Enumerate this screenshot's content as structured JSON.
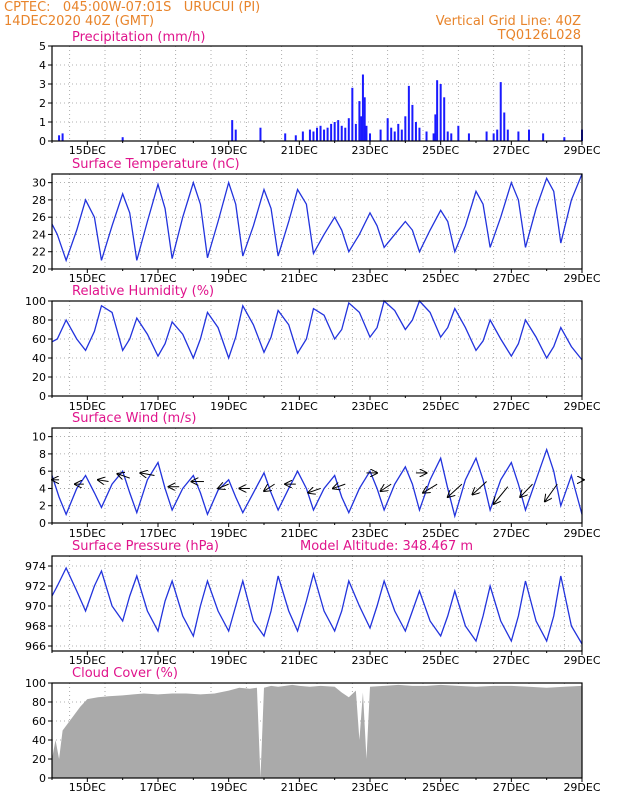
{
  "header": {
    "line1_left": "CPTEC:   045:00W-07:01S   URUCUI (PI)",
    "line2_left": "14DEC2020 40Z (GMT)",
    "line1_right": "Vertical Grid Line: 40Z",
    "line2_right": "TQ0126L028"
  },
  "x_axis": {
    "tick_labels": [
      "15DEC",
      "17DEC",
      "19DEC",
      "21DEC",
      "23DEC",
      "25DEC",
      "27DEC",
      "29DEC"
    ],
    "start_day": 14.0,
    "end_day": 29.0
  },
  "colors": {
    "line": "#2233dd",
    "bar": "#1a1aff",
    "cloud": "#aaaaaa",
    "title": "#e0148c",
    "header": "#e8842b"
  },
  "chart_data": [
    {
      "type": "bar",
      "title": "Precipitation (mm/h)",
      "ylim": [
        0,
        5
      ],
      "yticks": [
        0,
        1,
        2,
        3,
        4,
        5
      ],
      "x": [
        14.2,
        14.3,
        16.0,
        19.1,
        19.2,
        19.9,
        20.6,
        20.9,
        21.1,
        21.3,
        21.4,
        21.5,
        21.6,
        21.7,
        21.8,
        21.9,
        22.0,
        22.1,
        22.2,
        22.3,
        22.4,
        22.5,
        22.6,
        22.7,
        22.75,
        22.8,
        22.85,
        22.9,
        23.0,
        23.3,
        23.5,
        23.6,
        23.7,
        23.8,
        23.9,
        24.0,
        24.1,
        24.2,
        24.3,
        24.4,
        24.6,
        24.8,
        24.85,
        24.9,
        25.0,
        25.1,
        25.2,
        25.3,
        25.5,
        25.8,
        26.3,
        26.5,
        26.6,
        26.7,
        26.8,
        26.9,
        27.2,
        27.5,
        27.9,
        28.5,
        29.0
      ],
      "values": [
        0.3,
        0.4,
        0.2,
        1.1,
        0.6,
        0.7,
        0.4,
        0.3,
        0.5,
        0.6,
        0.5,
        0.7,
        0.8,
        0.6,
        0.7,
        0.9,
        1.0,
        1.1,
        0.8,
        0.7,
        1.2,
        2.8,
        0.9,
        2.1,
        1.3,
        3.5,
        2.3,
        0.8,
        0.4,
        0.6,
        1.2,
        0.7,
        0.5,
        0.9,
        0.6,
        1.3,
        2.9,
        1.9,
        1.0,
        0.7,
        0.5,
        0.4,
        1.4,
        3.2,
        3.0,
        2.3,
        0.5,
        0.4,
        0.8,
        0.4,
        0.5,
        0.4,
        0.6,
        3.1,
        1.5,
        0.6,
        0.5,
        0.6,
        0.4,
        0.2,
        0.6
      ]
    },
    {
      "type": "line",
      "title": "Surface Temperature (nC)",
      "ylim": [
        20,
        31
      ],
      "yticks": [
        20,
        22,
        24,
        26,
        28,
        30
      ],
      "x": [
        14.0,
        14.15,
        14.4,
        14.7,
        14.95,
        15.2,
        15.4,
        15.7,
        16.0,
        16.2,
        16.4,
        16.7,
        17.0,
        17.2,
        17.4,
        17.7,
        18.0,
        18.2,
        18.4,
        18.7,
        19.0,
        19.2,
        19.4,
        19.7,
        20.0,
        20.2,
        20.4,
        20.7,
        20.95,
        21.2,
        21.4,
        21.7,
        22.0,
        22.2,
        22.4,
        22.7,
        23.0,
        23.2,
        23.4,
        23.7,
        24.0,
        24.2,
        24.4,
        24.7,
        25.0,
        25.2,
        25.4,
        25.7,
        26.0,
        26.2,
        26.4,
        26.7,
        27.0,
        27.2,
        27.4,
        27.7,
        28.0,
        28.2,
        28.4,
        28.7,
        29.0
      ],
      "values": [
        25.2,
        24.0,
        21.0,
        24.5,
        28.0,
        26.0,
        21.0,
        25.0,
        28.7,
        26.5,
        21.0,
        25.5,
        29.8,
        27.0,
        21.2,
        26.0,
        30.0,
        27.5,
        21.3,
        25.5,
        30.0,
        27.5,
        21.5,
        25.0,
        29.2,
        27.0,
        21.5,
        25.5,
        29.2,
        27.5,
        21.8,
        24.0,
        26.0,
        24.5,
        22.0,
        24.0,
        26.5,
        25.0,
        22.5,
        24.0,
        25.5,
        24.5,
        22.0,
        24.5,
        26.8,
        25.5,
        22.0,
        25.0,
        29.0,
        27.5,
        22.5,
        26.0,
        30.0,
        28.0,
        22.5,
        27.0,
        30.5,
        29.0,
        23.0,
        28.0,
        31.0
      ]
    },
    {
      "type": "line",
      "title": "Relative Humidity (%)",
      "ylim": [
        0,
        100
      ],
      "yticks": [
        0,
        20,
        40,
        60,
        80,
        100
      ],
      "x": [
        14.0,
        14.15,
        14.4,
        14.7,
        14.95,
        15.2,
        15.4,
        15.7,
        16.0,
        16.2,
        16.4,
        16.7,
        17.0,
        17.2,
        17.4,
        17.7,
        18.0,
        18.2,
        18.4,
        18.7,
        19.0,
        19.2,
        19.4,
        19.7,
        20.0,
        20.2,
        20.4,
        20.7,
        20.95,
        21.2,
        21.4,
        21.7,
        22.0,
        22.2,
        22.4,
        22.7,
        23.0,
        23.2,
        23.4,
        23.7,
        24.0,
        24.2,
        24.4,
        24.7,
        25.0,
        25.2,
        25.4,
        25.7,
        26.0,
        26.2,
        26.4,
        26.7,
        27.0,
        27.2,
        27.4,
        27.7,
        28.0,
        28.2,
        28.4,
        28.7,
        29.0
      ],
      "values": [
        57,
        60,
        80,
        60,
        48,
        68,
        95,
        88,
        48,
        60,
        82,
        65,
        42,
        55,
        78,
        65,
        40,
        60,
        88,
        72,
        40,
        62,
        95,
        75,
        46,
        62,
        90,
        75,
        45,
        60,
        92,
        85,
        60,
        70,
        98,
        88,
        62,
        72,
        100,
        90,
        70,
        80,
        100,
        88,
        62,
        72,
        92,
        72,
        48,
        58,
        80,
        60,
        42,
        55,
        80,
        62,
        40,
        52,
        72,
        52,
        38
      ]
    },
    {
      "type": "line",
      "title": "Surface Wind (m/s)",
      "ylim": [
        0,
        11
      ],
      "yticks": [
        0,
        2,
        4,
        6,
        8,
        10
      ],
      "x": [
        14.0,
        14.2,
        14.4,
        14.7,
        14.95,
        15.2,
        15.4,
        15.7,
        16.0,
        16.2,
        16.4,
        16.7,
        17.0,
        17.2,
        17.4,
        17.7,
        18.0,
        18.2,
        18.4,
        18.7,
        19.0,
        19.2,
        19.4,
        19.7,
        20.0,
        20.2,
        20.4,
        20.7,
        20.95,
        21.2,
        21.4,
        21.7,
        22.0,
        22.2,
        22.4,
        22.7,
        23.0,
        23.2,
        23.4,
        23.7,
        24.0,
        24.2,
        24.4,
        24.7,
        25.0,
        25.2,
        25.4,
        25.7,
        26.0,
        26.2,
        26.4,
        26.7,
        27.0,
        27.2,
        27.4,
        27.7,
        28.0,
        28.2,
        28.4,
        28.7,
        29.0
      ],
      "values": [
        5.5,
        3.0,
        1.0,
        4.0,
        5.5,
        3.5,
        1.8,
        4.5,
        6.0,
        3.5,
        1.2,
        5.0,
        7.0,
        4.0,
        1.5,
        4.0,
        5.5,
        3.5,
        1.0,
        3.8,
        5.0,
        3.0,
        1.2,
        3.5,
        5.8,
        3.5,
        1.5,
        4.0,
        6.0,
        4.0,
        1.5,
        4.0,
        5.5,
        3.0,
        1.2,
        4.0,
        6.0,
        4.0,
        1.5,
        4.5,
        6.5,
        4.5,
        1.5,
        5.0,
        7.5,
        4.0,
        0.8,
        5.0,
        7.5,
        5.0,
        1.5,
        5.0,
        7.0,
        4.5,
        1.5,
        5.0,
        8.5,
        6.0,
        2.0,
        5.5,
        1.0
      ],
      "arrows": {
        "x": [
          14.2,
          14.9,
          15.6,
          16.2,
          16.9,
          17.6,
          18.3,
          19.0,
          19.6,
          20.3,
          20.9,
          21.6,
          22.3,
          22.9,
          23.6,
          24.3,
          24.9,
          25.6,
          26.3,
          26.9,
          27.6,
          28.3,
          29.0
        ],
        "from_value": [
          5.0,
          4.5,
          4.8,
          5.2,
          5.5,
          4.2,
          4.8,
          4.5,
          4.0,
          4.5,
          4.5,
          4.0,
          4.5,
          5.8,
          4.5,
          5.8,
          4.5,
          4.5,
          4.8,
          4.2,
          4.5,
          4.5,
          5.0
        ],
        "dx": [
          -0.2,
          -0.25,
          -0.3,
          -0.35,
          -0.4,
          -0.3,
          -0.35,
          -0.3,
          -0.3,
          -0.3,
          -0.3,
          -0.35,
          -0.35,
          0.3,
          -0.3,
          0.3,
          -0.4,
          -0.4,
          -0.4,
          -0.4,
          -0.35,
          -0.35,
          0.05
        ],
        "dv": [
          0.0,
          0.0,
          0.2,
          0.5,
          0.3,
          0.0,
          0.0,
          -0.5,
          0.0,
          -0.8,
          0.0,
          -0.5,
          -0.5,
          0.0,
          -0.8,
          0.0,
          -1.0,
          -1.5,
          -1.5,
          -2.0,
          -1.5,
          -2.0,
          0.0
        ]
      }
    },
    {
      "type": "line",
      "title": "Surface Pressure (hPa)",
      "annotation": "Model Altitude: 348.467  m",
      "ylim": [
        965.5,
        975
      ],
      "yticks": [
        966,
        968,
        970,
        972,
        974
      ],
      "x": [
        14.0,
        14.15,
        14.4,
        14.7,
        14.95,
        15.2,
        15.4,
        15.7,
        16.0,
        16.2,
        16.4,
        16.7,
        17.0,
        17.2,
        17.4,
        17.7,
        18.0,
        18.2,
        18.4,
        18.7,
        19.0,
        19.2,
        19.4,
        19.7,
        20.0,
        20.2,
        20.4,
        20.7,
        20.95,
        21.2,
        21.4,
        21.7,
        22.0,
        22.2,
        22.4,
        22.7,
        23.0,
        23.2,
        23.4,
        23.7,
        24.0,
        24.2,
        24.4,
        24.7,
        25.0,
        25.2,
        25.4,
        25.7,
        26.0,
        26.2,
        26.4,
        26.7,
        27.0,
        27.2,
        27.4,
        27.7,
        28.0,
        28.2,
        28.4,
        28.7,
        29.0
      ],
      "values": [
        971.0,
        972.0,
        973.8,
        971.5,
        969.5,
        972.0,
        973.5,
        970.0,
        968.5,
        971.0,
        973.0,
        969.5,
        967.5,
        970.5,
        972.5,
        969.0,
        967.0,
        970.0,
        972.5,
        969.5,
        967.5,
        970.0,
        972.5,
        968.5,
        967.0,
        969.5,
        973.0,
        969.5,
        967.5,
        970.5,
        973.2,
        969.5,
        967.5,
        969.5,
        972.5,
        970.0,
        967.8,
        970.0,
        972.5,
        969.5,
        967.5,
        969.5,
        971.5,
        968.5,
        967.0,
        969.0,
        971.5,
        968.0,
        966.5,
        969.0,
        972.0,
        968.5,
        966.5,
        969.0,
        972.5,
        968.5,
        966.5,
        969.0,
        973.0,
        968.0,
        966.2
      ]
    },
    {
      "type": "area",
      "title": "Cloud Cover (%)",
      "ylim": [
        0,
        100
      ],
      "yticks": [
        0,
        20,
        40,
        60,
        80,
        100
      ],
      "x": [
        14.0,
        14.1,
        14.2,
        14.3,
        14.5,
        14.8,
        15.0,
        15.3,
        15.6,
        16.0,
        16.3,
        16.6,
        17.0,
        17.4,
        17.8,
        18.2,
        18.6,
        19.0,
        19.3,
        19.6,
        19.8,
        19.9,
        20.0,
        20.2,
        20.4,
        20.6,
        20.8,
        21.0,
        21.3,
        21.6,
        22.0,
        22.2,
        22.4,
        22.6,
        22.7,
        22.8,
        22.9,
        23.0,
        23.4,
        23.8,
        24.2,
        24.6,
        25.0,
        25.5,
        26.0,
        26.5,
        27.0,
        27.5,
        28.0,
        28.5,
        29.0
      ],
      "values": [
        20,
        40,
        20,
        50,
        60,
        75,
        83,
        85,
        86,
        87,
        88,
        89,
        88,
        89,
        89,
        88,
        89,
        92,
        95,
        94,
        95,
        0,
        95,
        97,
        96,
        97,
        98,
        97,
        96,
        97,
        96,
        90,
        85,
        92,
        40,
        90,
        20,
        96,
        97,
        98,
        97,
        97,
        98,
        97,
        96,
        97,
        97,
        96,
        95,
        96,
        97
      ]
    }
  ]
}
